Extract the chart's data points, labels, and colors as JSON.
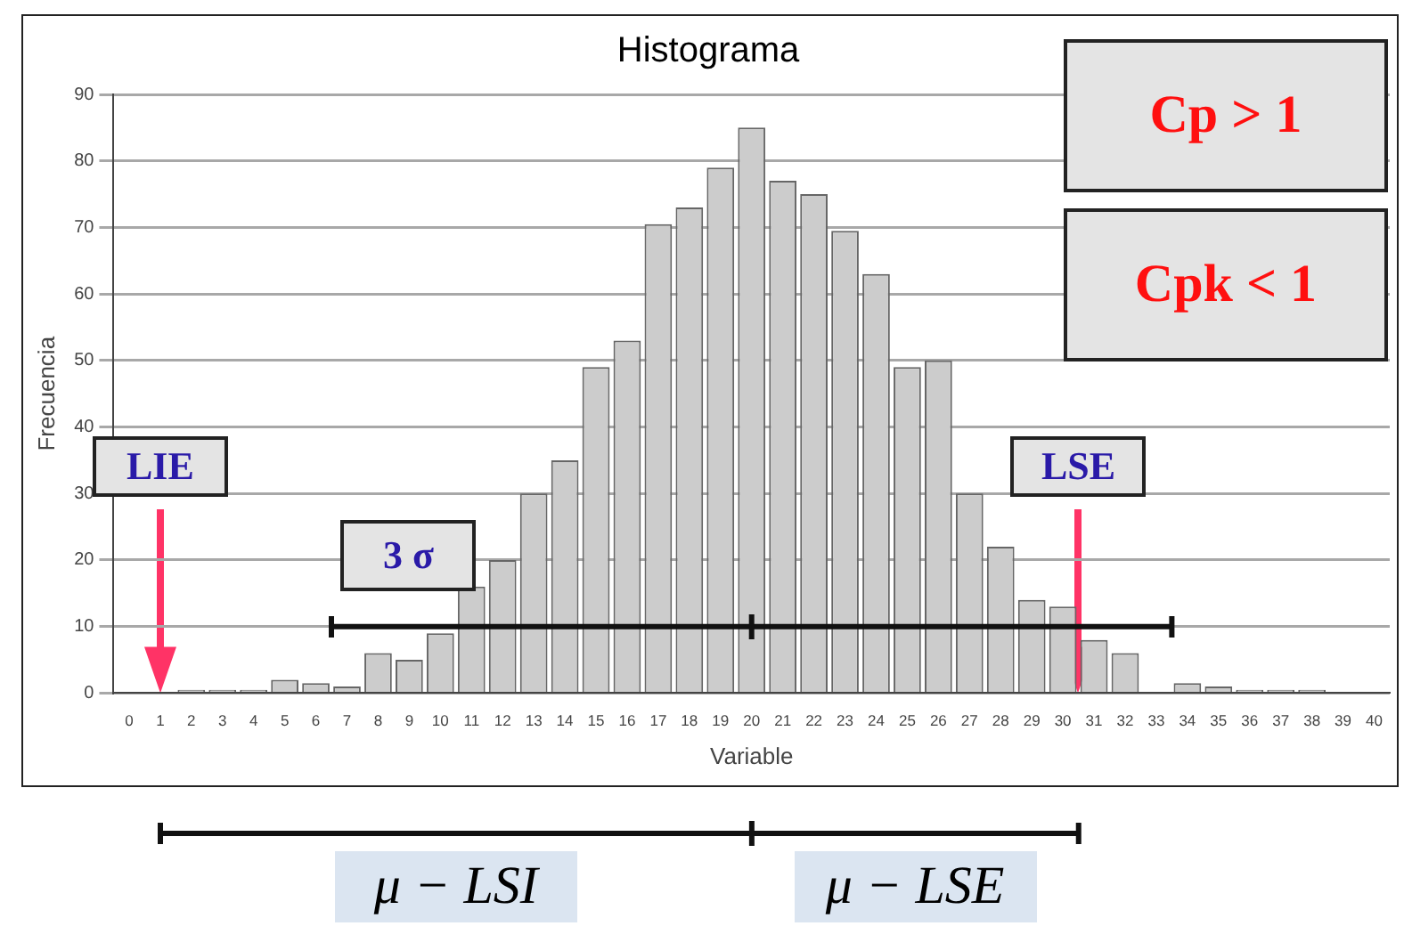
{
  "chart_data": {
    "type": "histogram",
    "title": "Histograma",
    "xlabel": "Variable",
    "ylabel": "Frecuencia",
    "bins": [
      -0.5,
      0.5,
      1.5,
      2.5,
      3.5,
      4.5,
      5.5,
      6.5,
      7.5,
      8.5,
      9.5,
      10.5,
      11.5,
      12.5,
      13.5,
      14.5,
      15.5,
      16.5,
      17.5,
      18.5,
      19.5,
      20.5,
      21.5,
      22.5,
      23.5,
      24.5,
      25.5,
      26.5,
      27.5,
      28.5,
      29.5,
      30.5,
      31.5,
      32.5,
      33.5,
      34.5,
      35.5,
      36.5,
      37.5,
      38.5,
      39.5,
      40.5
    ],
    "values": [
      0,
      0,
      0.5,
      0.5,
      0.5,
      2,
      1.5,
      1,
      6,
      5,
      9,
      16,
      20,
      30,
      35,
      49,
      53,
      70.5,
      73,
      79,
      85,
      77,
      75,
      69.5,
      63,
      49,
      50,
      30,
      22,
      14,
      13,
      8,
      6,
      0,
      1.5,
      1,
      0.5,
      0.5,
      0.5,
      0,
      0
    ],
    "color": "#cccccc",
    "series": [
      {
        "type": "line",
        "x": [
          6.5,
          33.5
        ],
        "values": [
          10,
          10
        ],
        "color": "#111111"
      }
    ],
    "xlim": [
      -0.5,
      40.5
    ],
    "xticks": [
      0,
      1,
      2,
      3,
      4,
      5,
      6,
      7,
      8,
      9,
      10,
      11,
      12,
      13,
      14,
      15,
      16,
      17,
      18,
      19,
      20,
      21,
      22,
      23,
      24,
      25,
      26,
      27,
      28,
      29,
      30,
      31,
      32,
      33,
      34,
      35,
      36,
      37,
      38,
      39,
      40
    ],
    "ylim": [
      0,
      90
    ],
    "yticks": [
      0,
      10,
      20,
      30,
      40,
      50,
      60,
      70,
      80,
      90
    ],
    "grid": "y",
    "annotations": [
      "Cp > 1",
      "Cpk < 1",
      "LIE",
      "LSE",
      "3 σ",
      "μ − LSI",
      "μ − LSE"
    ]
  }
}
